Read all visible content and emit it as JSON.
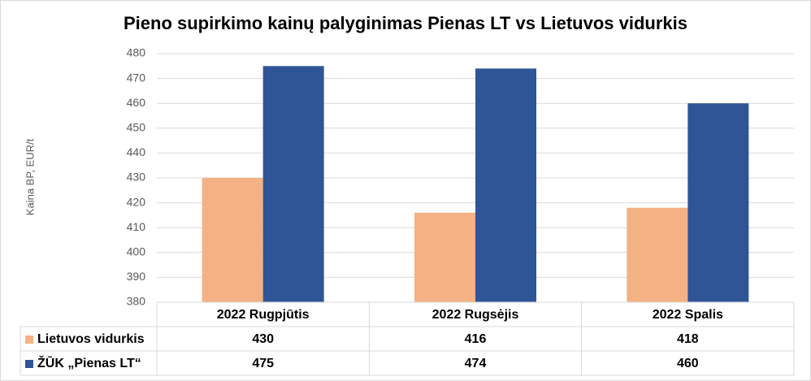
{
  "chart_data": {
    "type": "bar",
    "title": "Pieno supirkimo kainų palyginimas Pienas LT vs Lietuvos vidurkis",
    "y_label": "Kaina BP, EUR/t",
    "categories": [
      "2022 Rugpjūtis",
      "2022 Rugsėjis",
      "2022 Spalis"
    ],
    "series": [
      {
        "name": "Lietuvos vidurkis",
        "color": "#f4b183",
        "values": [
          430,
          416,
          418
        ]
      },
      {
        "name": "ŽŪK „Pienas LT“",
        "color": "#2f5597",
        "values": [
          475,
          474,
          460
        ]
      }
    ],
    "ylim": [
      380,
      480
    ],
    "yticks": [
      380,
      390,
      400,
      410,
      420,
      430,
      440,
      450,
      460,
      470,
      480
    ],
    "grid": true,
    "data_table": true
  }
}
